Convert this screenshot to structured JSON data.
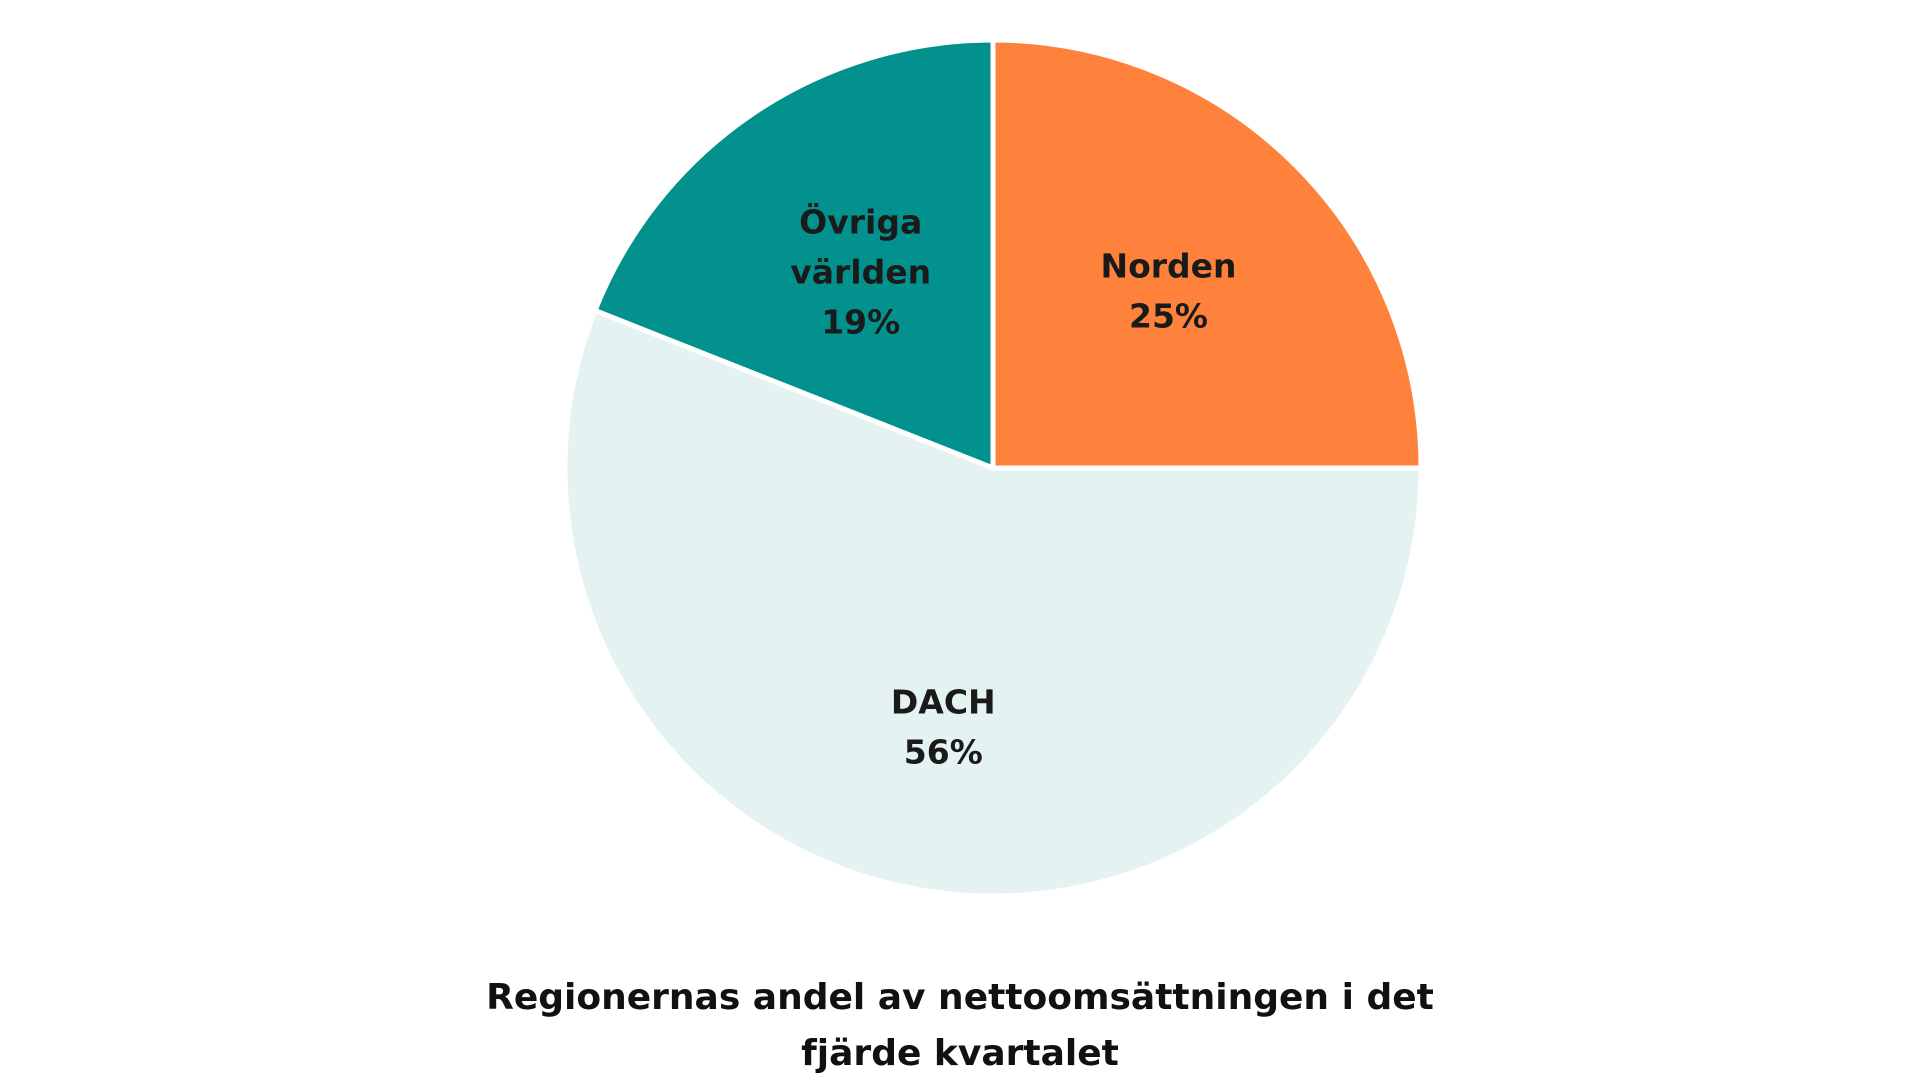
{
  "chart_data": {
    "type": "pie",
    "title_lines": [
      "Regionernas andel av nettoomsättningen i det",
      "fjärde kvartalet"
    ],
    "slices": [
      {
        "label": "Norden",
        "label_lines": [
          "Norden"
        ],
        "value": 25,
        "value_label": "25%",
        "color": "#FF823C"
      },
      {
        "label": "DACH",
        "label_lines": [
          "DACH"
        ],
        "value": 56,
        "value_label": "56%",
        "color": "#E4F3F2"
      },
      {
        "label": "Övriga världen",
        "label_lines": [
          "Övriga",
          "världen"
        ],
        "value": 19,
        "value_label": "19%",
        "color": "#03918D"
      }
    ],
    "start_angle": "12 o'clock",
    "direction": "clockwise",
    "legend": "none",
    "data_labels": "inside"
  }
}
